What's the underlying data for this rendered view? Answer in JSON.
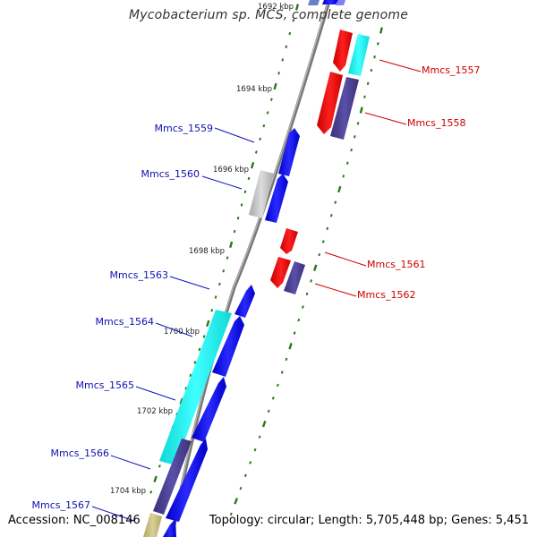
{
  "title": "Mycobacterium sp. MCS, complete genome",
  "accession_text": "Accession: NC_008146",
  "summary_text": "Topology: circular; Length: 5,705,448 bp; Genes: 5,451",
  "colors": {
    "backbone": "#8a8a8a",
    "tick": "#2a7a1a",
    "forward_label": "#1010b0",
    "reverse_label": "#cc0000",
    "cds_forward": "#0a0aee",
    "cds_reverse": "#ee0000",
    "blast_cyan": "#22ffff",
    "blast_slate": "#4a3f90",
    "blast_grey": "#c0c0c0",
    "blast_khaki": "#c8c080"
  },
  "scale_labels": [
    "1692 kbp",
    "1694 kbp",
    "1696 kbp",
    "1698 kbp",
    "1700 kbp",
    "1702 kbp",
    "1704 kbp"
  ],
  "gene_labels_left": [
    "Mmcs_1559",
    "Mmcs_1560",
    "Mmcs_1563",
    "Mmcs_1564",
    "Mmcs_1565",
    "Mmcs_1566",
    "Mmcs_1567"
  ],
  "gene_labels_right": [
    "Mmcs_1557",
    "Mmcs_1558",
    "Mmcs_1561",
    "Mmcs_1562"
  ]
}
